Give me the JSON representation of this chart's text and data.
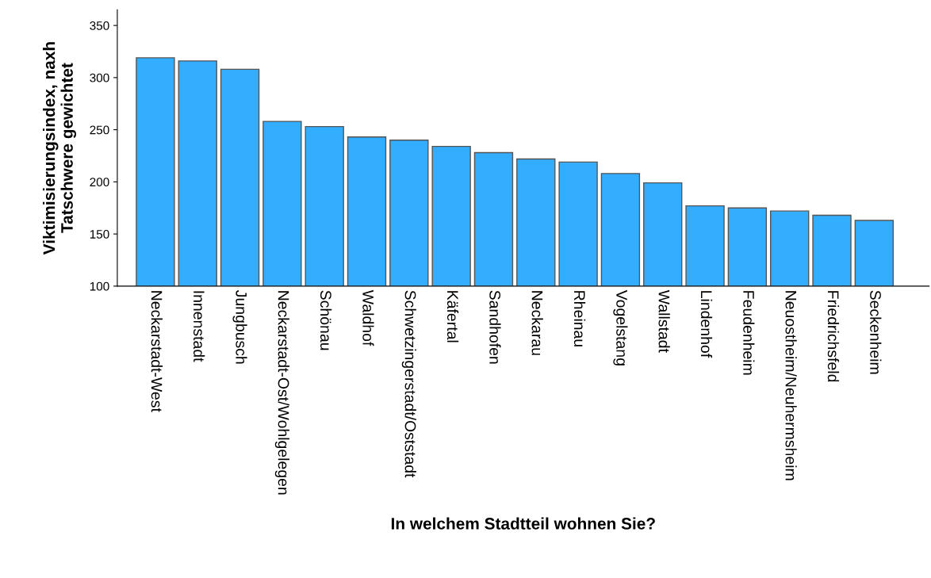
{
  "chart_data": {
    "type": "bar",
    "xlabel": "In welchem Stadtteil wohnen Sie?",
    "ylabel": "Viktimisierungsindex, naxh\nTatschwere gewichtet",
    "categories": [
      "Neckarstadt-West",
      "Innenstadt",
      "Jungbusch",
      "Neckarstadt-Ost/Wohlgelegen",
      "Schönau",
      "Waldhof",
      "Schwetzingerstadt/Oststadt",
      "Käfertal",
      "Sandhofen",
      "Neckarau",
      "Rheinau",
      "Vogelstang",
      "Wallstadt",
      "Lindenhof",
      "Feudenheim",
      "Neuostheim/Neuhermsheim",
      "Friedrichsfeld",
      "Seckenheim"
    ],
    "values": [
      319,
      316,
      308,
      258,
      253,
      243,
      240,
      234,
      228,
      222,
      219,
      208,
      199,
      177,
      175,
      172,
      168,
      163
    ],
    "color": "#33adff",
    "ylim": [
      100,
      365
    ],
    "yticks": [
      100,
      150,
      200,
      250,
      300,
      350
    ],
    "grid": false
  }
}
